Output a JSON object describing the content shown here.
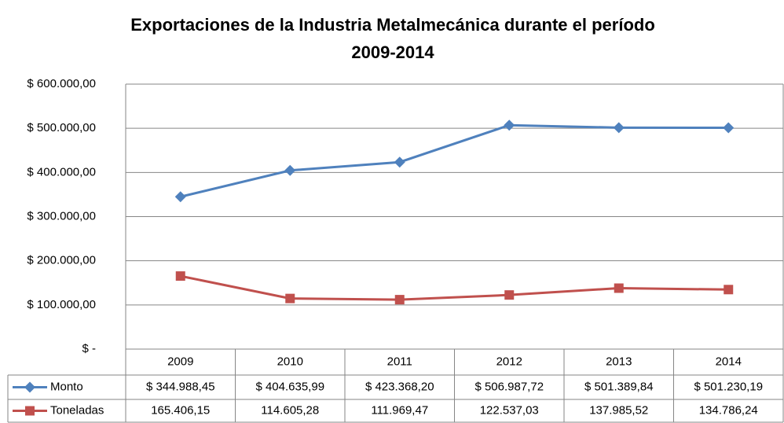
{
  "chart_data": {
    "type": "line",
    "title": [
      "Exportaciones de la Industria Metalmecánica durante el período",
      "2009-2014"
    ],
    "categories": [
      "2009",
      "2010",
      "2011",
      "2012",
      "2013",
      "2014"
    ],
    "series": [
      {
        "name": "Monto",
        "color": "#4f81bd",
        "marker": "diamond",
        "values": [
          344988.45,
          404635.99,
          423368.2,
          506987.72,
          501389.84,
          501230.19
        ],
        "value_labels": [
          "$ 344.988,45",
          "$ 404.635,99",
          "$ 423.368,20",
          "$ 506.987,72",
          "$ 501.389,84",
          "$ 501.230,19"
        ]
      },
      {
        "name": "Toneladas",
        "color": "#c0504d",
        "marker": "square",
        "values": [
          165406.15,
          114605.28,
          111969.47,
          122537.03,
          137985.52,
          134786.24
        ],
        "value_labels": [
          "165.406,15",
          "114.605,28",
          "111.969,47",
          "122.537,03",
          "137.985,52",
          "134.786,24"
        ]
      }
    ],
    "ylim": [
      0,
      600000
    ],
    "yticks": [
      {
        "value": 0,
        "label": "$ -"
      },
      {
        "value": 100000,
        "label": "$ 100.000,00"
      },
      {
        "value": 200000,
        "label": "$ 200.000,00"
      },
      {
        "value": 300000,
        "label": "$ 300.000,00"
      },
      {
        "value": 400000,
        "label": "$ 400.000,00"
      },
      {
        "value": 500000,
        "label": "$ 500.000,00"
      },
      {
        "value": 600000,
        "label": "$ 600.000,00"
      }
    ],
    "grid": true,
    "data_table": true
  }
}
